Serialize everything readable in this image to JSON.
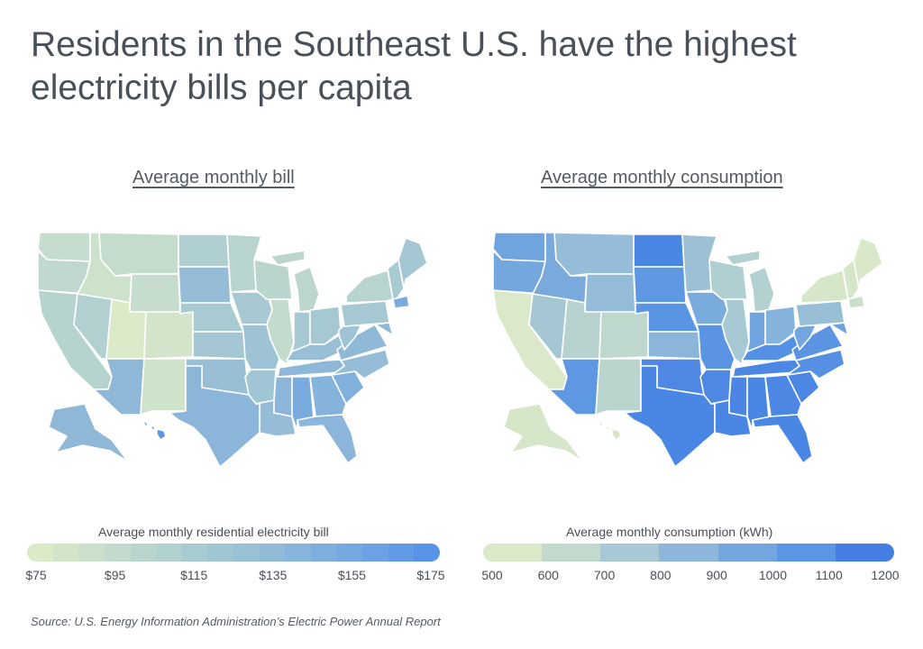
{
  "title": "Residents in the Southeast U.S. have the highest electricity bills per capita",
  "source": "Source:  U.S. Energy Information Administration’s Electric Power Annual Report",
  "maps": [
    {
      "panel_title": "Average monthly bill",
      "legend_title": "Average monthly residential electricity bill",
      "legend_ticks": [
        "$75",
        "$95",
        "$115",
        "$135",
        "$155",
        "$175"
      ],
      "legend_range": [
        75,
        175
      ],
      "legend_colors": [
        "#dbeac8",
        "#d3e5c9",
        "#cbe0cb",
        "#c2dbcc",
        "#b9d5ce",
        "#b1d0d0",
        "#a8cbd1",
        "#a0c6d3",
        "#98c1d6",
        "#90bbd8",
        "#87b5db",
        "#7eaede",
        "#75a8e0",
        "#6ca2e3",
        "#629be5",
        "#5894e8"
      ],
      "state_colors": {
        "WA": "#c5dcce",
        "OR": "#c0d8cf",
        "CA": "#b7d3cf",
        "NV": "#b2d0d0",
        "ID": "#cde2cb",
        "MT": "#c5dccd",
        "WY": "#c6ddcd",
        "UT": "#dbeac8",
        "CO": "#d2e5ca",
        "AZ": "#8fb8d8",
        "NM": "#cfe3ca",
        "ND": "#b0cfd1",
        "SD": "#96bdd7",
        "NE": "#a8cad3",
        "KS": "#a5c7d3",
        "OK": "#98bfd6",
        "TX": "#8cb6d9",
        "MN": "#b8d4cf",
        "IA": "#a8c9d3",
        "MO": "#9ec3d5",
        "AR": "#a0c5d5",
        "LA": "#96bdd7",
        "WI": "#bad5ce",
        "IL": "#c3dbcd",
        "MI": "#bcd6ce",
        "IN": "#a7c9d3",
        "OH": "#a6c8d3",
        "KY": "#98bfd6",
        "TN": "#8fb8d8",
        "MS": "#8cb6d9",
        "AL": "#7aabde",
        "GA": "#86b3db",
        "FL": "#8bb5da",
        "SC": "#82b0dc",
        "NC": "#96bdd7",
        "VA": "#90b9d8",
        "WV": "#9ec3d5",
        "PA": "#a6c8d3",
        "NY": "#b8d4cf",
        "NE_REGION": "#a9cad3",
        "ME": "#a5c7d4",
        "CT": "#7aabde",
        "MD": "#90b9d8",
        "AK": "#8fb8d8",
        "HI": "#5b95e6"
      }
    },
    {
      "panel_title": "Average monthly consumption",
      "legend_title": "Average monthly consumption (kWh)",
      "legend_ticks": [
        "500",
        "600",
        "700",
        "800",
        "900",
        "1000",
        "1100",
        "1200"
      ],
      "legend_range": [
        500,
        1200
      ],
      "legend_colors": [
        "#dbeac8",
        "#c2dacd",
        "#a7c8d4",
        "#8db7da",
        "#73a6de",
        "#5a96e3",
        "#457fe3"
      ],
      "state_colors": {
        "WA": "#6fa4df",
        "OR": "#74a7de",
        "CA": "#dae9c9",
        "NV": "#a5c7d4",
        "ID": "#7aaadd",
        "MT": "#95bcd8",
        "WY": "#94bcd8",
        "UT": "#b8d3cf",
        "CO": "#bfd8ce",
        "AZ": "#5f98e2",
        "NM": "#bad5ce",
        "ND": "#4a86e4",
        "SD": "#5e97e2",
        "NE": "#5a95e3",
        "KS": "#8cb6d9",
        "OK": "#4e88e4",
        "TX": "#4a86e4",
        "MN": "#9cc1d6",
        "IA": "#7aabdd",
        "MO": "#5a94e3",
        "AR": "#4e88e4",
        "LA": "#4a86e4",
        "WI": "#b0cfd1",
        "IL": "#a7c9d3",
        "MI": "#b2d1d0",
        "IN": "#6fa4df",
        "OH": "#86b3db",
        "KY": "#5590e4",
        "TN": "#4d87e4",
        "MS": "#4b86e4",
        "AL": "#4a86e4",
        "GA": "#4d87e4",
        "FL": "#4a86e4",
        "SC": "#4d87e4",
        "NC": "#5590e4",
        "VA": "#5a94e3",
        "WV": "#73a6de",
        "PA": "#98bfd6",
        "NY": "#d5e6c9",
        "NE_REGION": "#d6e7c9",
        "ME": "#d8e8c9",
        "CT": "#c8dfcc",
        "MD": "#6ca2df",
        "AK": "#d6e7c9",
        "HI": "#d3e5c9"
      }
    }
  ]
}
